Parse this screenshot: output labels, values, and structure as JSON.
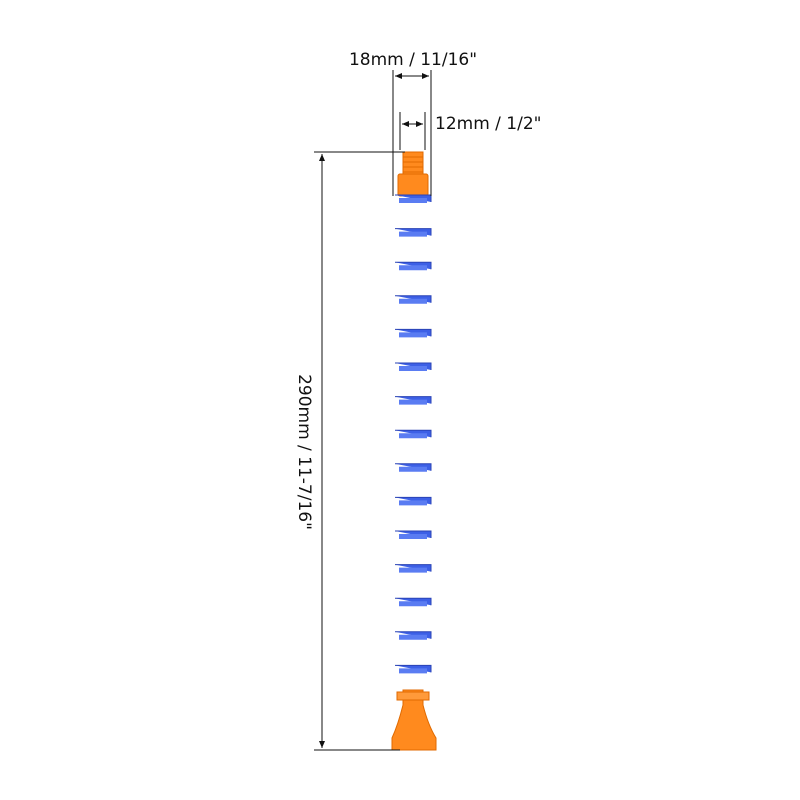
{
  "dimensions": {
    "outer_diameter": "18mm / 11/16\"",
    "thread": "12mm / 1/2\"",
    "length": "290mm / 11-7/16\""
  }
}
